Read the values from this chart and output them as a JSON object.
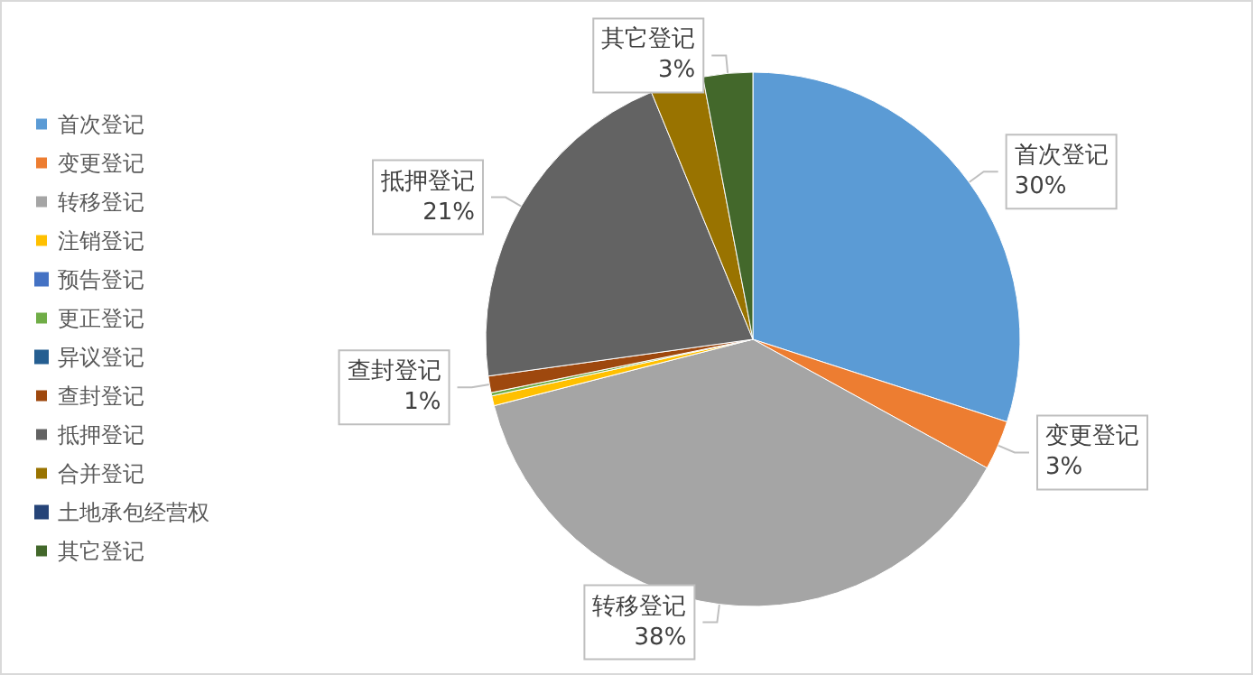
{
  "chart_data": {
    "type": "pie",
    "categories": [
      "首次登记",
      "变更登记",
      "转移登记",
      "注销登记",
      "预告登记",
      "更正登记",
      "异议登记",
      "查封登记",
      "抵押登记",
      "合并登记",
      "土地承包经营权",
      "其它登记"
    ],
    "values": [
      30,
      3,
      38,
      0.6,
      0,
      0.2,
      0,
      1,
      21,
      3.2,
      0,
      3
    ],
    "value_labels": [
      "30%",
      "3%",
      "38%",
      null,
      null,
      null,
      null,
      "1%",
      "21%",
      null,
      null,
      "3%"
    ],
    "colors": [
      "#5b9bd5",
      "#ed7d31",
      "#a5a5a5",
      "#ffc000",
      "#4472c4",
      "#70ad47",
      "#255e91",
      "#9e480e",
      "#636363",
      "#997300",
      "#264478",
      "#43682b"
    ],
    "legend": "left"
  }
}
